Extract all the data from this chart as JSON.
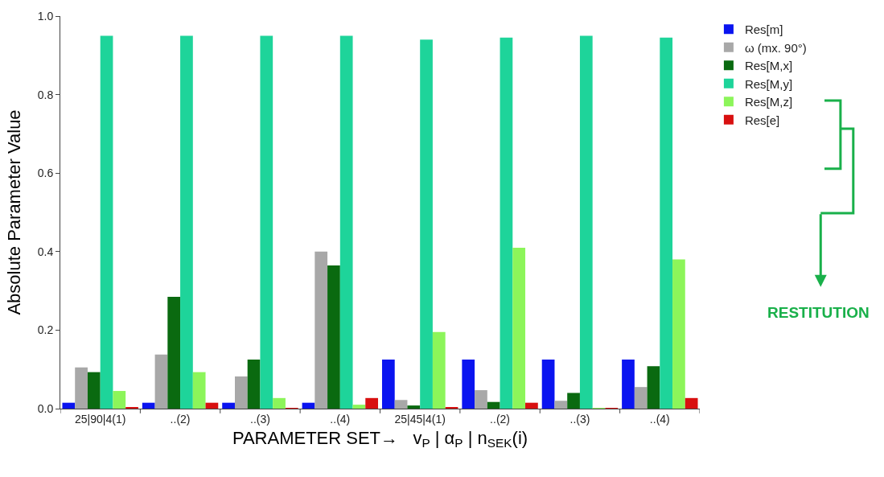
{
  "chart_data": {
    "type": "bar",
    "categories": [
      "25|90|4(1)",
      "..(2)",
      "..(3)",
      "..(4)",
      "25|45|4(1)",
      "..(2)",
      "..(3)",
      "..(4)"
    ],
    "series": [
      {
        "name": "Res[m]",
        "color": "#0a14f0",
        "values": [
          0.015,
          0.015,
          0.015,
          0.015,
          0.125,
          0.125,
          0.125,
          0.125
        ]
      },
      {
        "name": "ω (mx. 90°)",
        "color": "#a8a8a8",
        "values": [
          0.105,
          0.138,
          0.082,
          0.4,
          0.022,
          0.047,
          0.02,
          0.055
        ]
      },
      {
        "name": "Res[M,x]",
        "color": "#0a6a10",
        "values": [
          0.093,
          0.285,
          0.125,
          0.365,
          0.008,
          0.017,
          0.04,
          0.108
        ]
      },
      {
        "name": "Res[M,y]",
        "color": "#1ed49a",
        "values": [
          0.95,
          0.95,
          0.95,
          0.95,
          0.94,
          0.945,
          0.95,
          0.945
        ]
      },
      {
        "name": "Res[M,z]",
        "color": "#8cf55a",
        "values": [
          0.045,
          0.093,
          0.027,
          0.01,
          0.195,
          0.41,
          0.002,
          0.38
        ]
      },
      {
        "name": "Res[e]",
        "color": "#d81010",
        "values": [
          0.003,
          0.015,
          0.002,
          0.027,
          0.003,
          0.015,
          0.002,
          0.027
        ]
      }
    ],
    "xlabel": "PARAMETER SET→   v$_{P}$ | α$_{P}$ | n$_{SEK}$(i)",
    "ylabel": "Absolute Parameter Value",
    "ylim": [
      0,
      1.0
    ],
    "yticks": [
      {
        "value": 0,
        "label": "0.0"
      },
      {
        "value": 0.2,
        "label": "0.2"
      },
      {
        "value": 0.4,
        "label": "0.4"
      },
      {
        "value": 0.6,
        "label": "0.6"
      },
      {
        "value": 0.8,
        "label": "0.8"
      },
      {
        "value": 1.0,
        "label": "1.0"
      }
    ],
    "annotations": [
      "RESTITUTION"
    ],
    "grid": false,
    "legend": "top right"
  }
}
